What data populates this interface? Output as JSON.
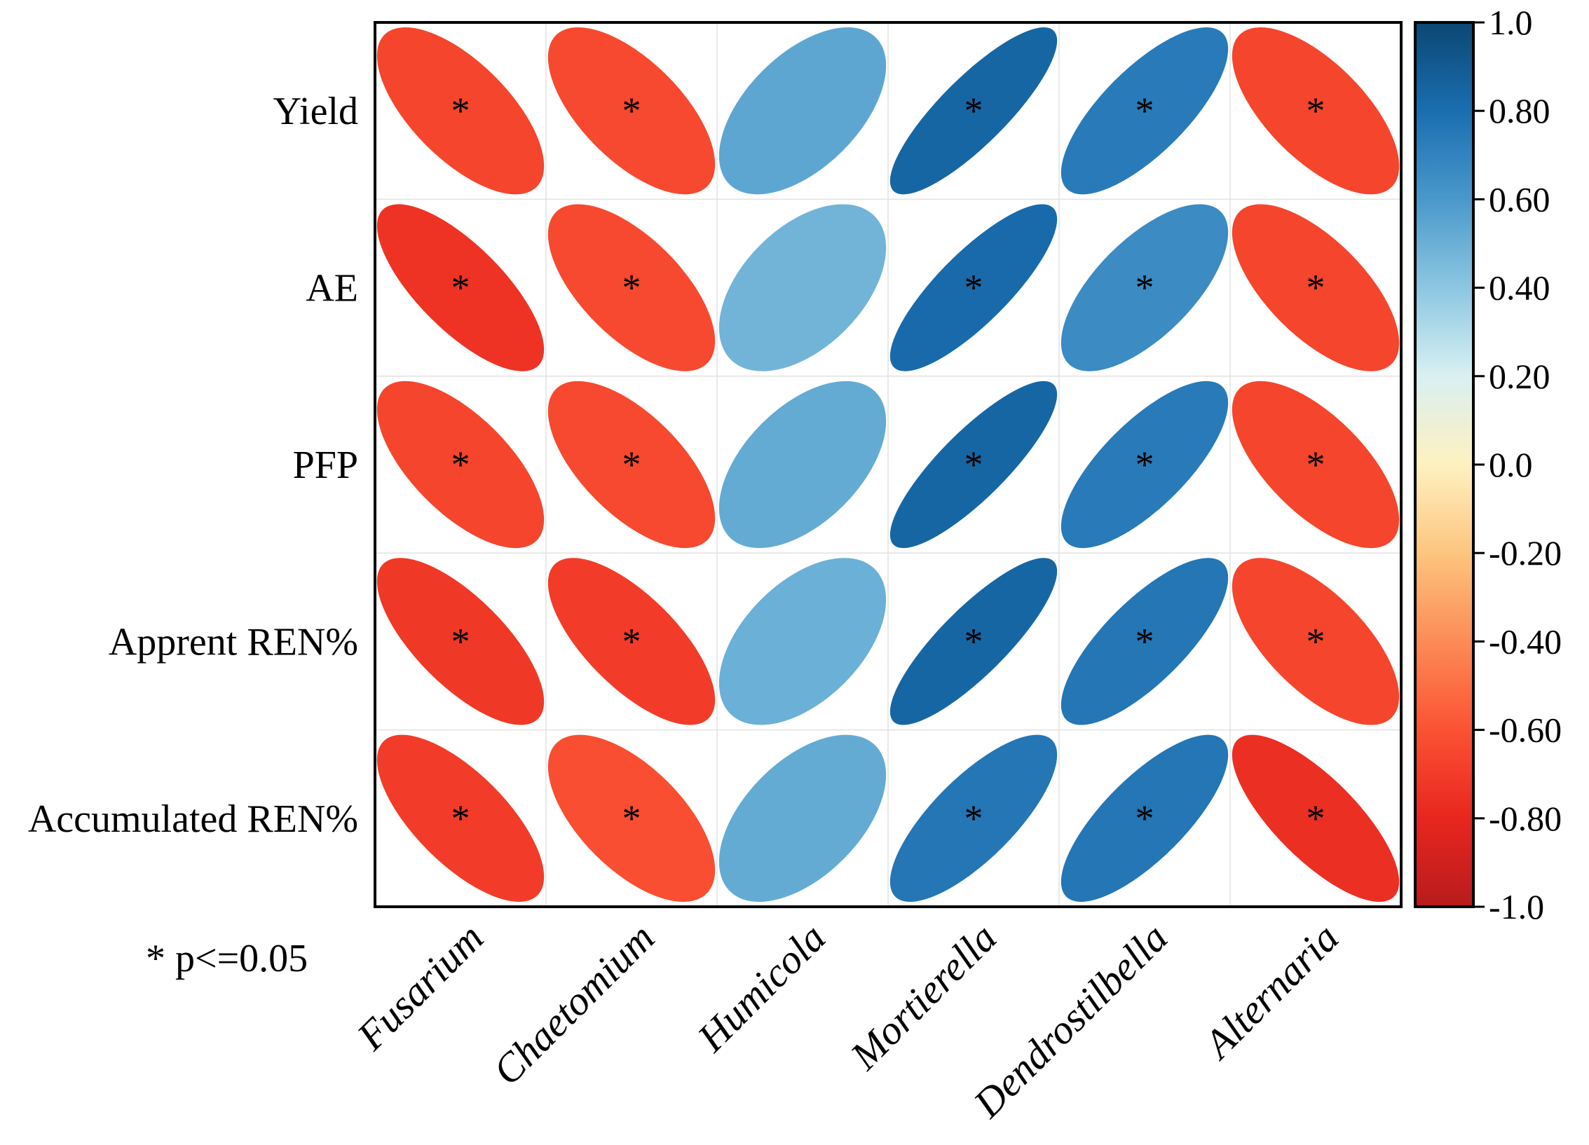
{
  "chart_data": {
    "type": "heatmap",
    "subtype": "correlation ellipse matrix",
    "rows": [
      "Yield",
      "AE",
      "PFP",
      "Apprent REN%",
      "Accumulated REN%"
    ],
    "columns": [
      "Fusarium",
      "Chaetomium",
      "Humicola",
      "Mortierella",
      "Dendrostilbella",
      "Alternaria"
    ],
    "values": [
      [
        -0.66,
        -0.64,
        0.54,
        0.84,
        0.74,
        -0.66
      ],
      [
        -0.74,
        -0.64,
        0.48,
        0.82,
        0.66,
        -0.66
      ],
      [
        -0.66,
        -0.64,
        0.52,
        0.84,
        0.74,
        -0.66
      ],
      [
        -0.72,
        -0.7,
        0.5,
        0.84,
        0.76,
        -0.66
      ],
      [
        -0.7,
        -0.62,
        0.52,
        0.76,
        0.76,
        -0.76
      ]
    ],
    "significant": [
      [
        true,
        true,
        false,
        true,
        true,
        true
      ],
      [
        true,
        true,
        false,
        true,
        true,
        true
      ],
      [
        true,
        true,
        false,
        true,
        true,
        true
      ],
      [
        true,
        true,
        false,
        true,
        true,
        true
      ],
      [
        true,
        true,
        false,
        true,
        true,
        true
      ]
    ],
    "significance_marker": "*",
    "significance_note": "* p<=0.05",
    "colorbar": {
      "range": [
        -1.0,
        1.0
      ],
      "ticks": [
        "1.0",
        "0.80",
        "0.60",
        "0.40",
        "0.20",
        "0.0",
        "-0.20",
        "-0.40",
        "-0.60",
        "-0.80",
        "-1.0"
      ],
      "colors": [
        {
          "value": -1.0,
          "color": "#b71c1c"
        },
        {
          "value": -0.8,
          "color": "#e8261f"
        },
        {
          "value": -0.6,
          "color": "#fb5233"
        },
        {
          "value": -0.4,
          "color": "#fc8b57"
        },
        {
          "value": -0.2,
          "color": "#fdc57f"
        },
        {
          "value": 0.0,
          "color": "#fef1c0"
        },
        {
          "value": 0.2,
          "color": "#d9f0f2"
        },
        {
          "value": 0.4,
          "color": "#8cc7e1"
        },
        {
          "value": 0.6,
          "color": "#4a98cb"
        },
        {
          "value": 0.8,
          "color": "#1a6eb0"
        },
        {
          "value": 1.0,
          "color": "#0b4774"
        }
      ]
    }
  }
}
